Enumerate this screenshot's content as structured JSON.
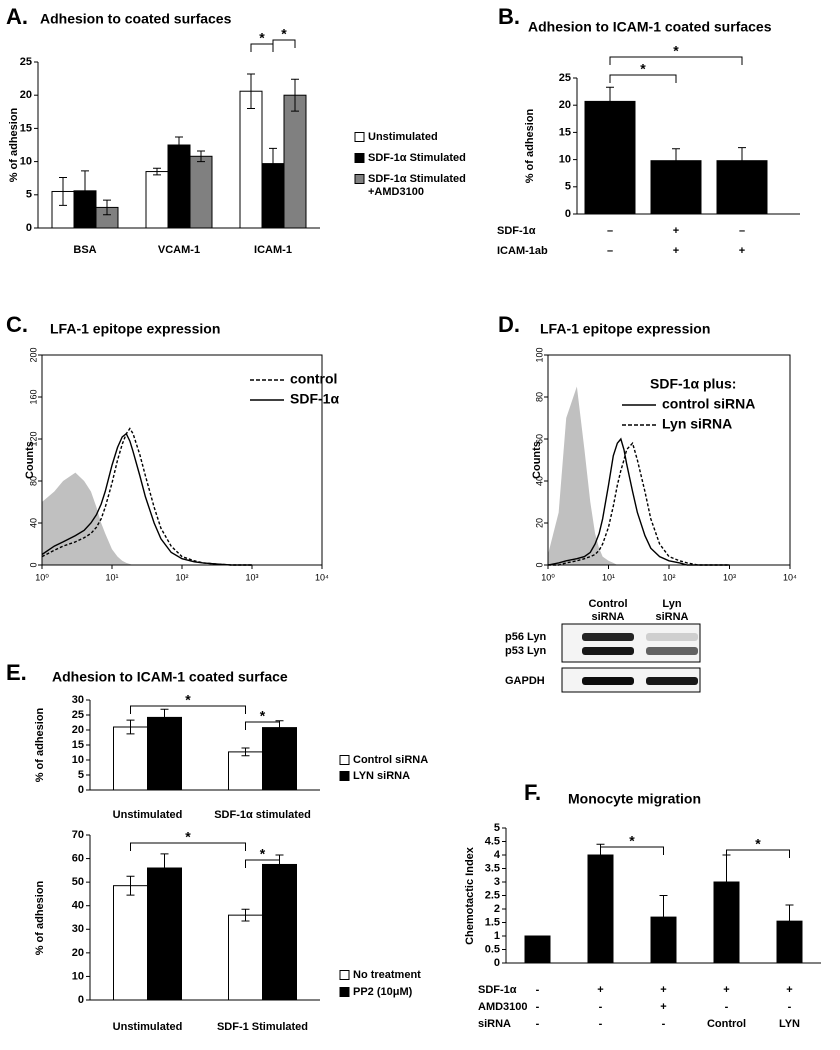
{
  "chart_data": [
    {
      "type": "bar",
      "panel": "A.",
      "title": "Adhesion to coated surfaces",
      "y_label": "% of adhesion",
      "categories": [
        "BSA",
        "VCAM-1",
        "ICAM-1"
      ],
      "series": [
        {
          "name": "Unstimulated",
          "color": "#ffffff",
          "values": [
            5.5,
            8.5,
            20.6
          ],
          "errors": [
            2.1,
            0.5,
            2.6
          ]
        },
        {
          "name": "SDF-1α Stimulated",
          "color": "#000000",
          "values": [
            5.6,
            12.5,
            9.7
          ],
          "errors": [
            3,
            1.2,
            2.3
          ]
        },
        {
          "name": "SDF-1α Stimulated +AMD3100",
          "color": "#808080",
          "values": [
            3.1,
            10.8,
            20
          ],
          "errors": [
            1.1,
            0.8,
            2.4
          ]
        }
      ],
      "ylim": [
        0,
        25
      ],
      "yticks": [
        0,
        5,
        10,
        15,
        20,
        25
      ],
      "annotations": [
        "*",
        "*"
      ]
    },
    {
      "type": "bar",
      "panel": "B.",
      "title": "Adhesion to ICAM-1 coated surfaces",
      "y_label": "% of  adhesion",
      "series": [
        {
          "color": "#000000",
          "values": [
            20.7,
            9.8,
            9.8
          ],
          "errors": [
            2.6,
            2.2,
            2.4
          ]
        }
      ],
      "rows": [
        {
          "label": "SDF-1α",
          "values": [
            "–",
            "+",
            "–"
          ]
        },
        {
          "label": "ICAM-1ab",
          "values": [
            "–",
            "+",
            "+"
          ]
        }
      ],
      "ylim": [
        0,
        25
      ],
      "yticks": [
        0,
        5,
        10,
        15,
        20,
        25
      ],
      "annotations": [
        "*",
        "*"
      ]
    },
    {
      "type": "line",
      "panel": "C.",
      "title": "LFA-1 epitope expression",
      "y_label": "Counts",
      "xlog": true,
      "x": [
        1,
        1.5,
        2,
        3,
        4,
        5,
        6,
        7,
        8,
        10,
        12,
        14,
        16,
        18,
        20,
        25,
        30,
        40,
        50,
        70,
        100,
        150,
        200,
        300,
        500,
        1000
      ],
      "series": [
        {
          "color": "#c0c0c0",
          "fill": true,
          "values": [
            60,
            70,
            80,
            88,
            80,
            70,
            55,
            40,
            30,
            15,
            8,
            4,
            2,
            1,
            0,
            0,
            0,
            0,
            0,
            0,
            0,
            0,
            0,
            0,
            0,
            0
          ]
        },
        {
          "name": "control",
          "color": "#000000",
          "dashed": true,
          "values": [
            8,
            14,
            18,
            22,
            26,
            30,
            36,
            44,
            55,
            78,
            100,
            115,
            125,
            130,
            125,
            105,
            85,
            55,
            35,
            18,
            8,
            4,
            2,
            1,
            0,
            0
          ]
        },
        {
          "name": "SDF-1α",
          "color": "#000000",
          "values": [
            10,
            18,
            22,
            28,
            33,
            40,
            48,
            58,
            70,
            95,
            112,
            122,
            125,
            118,
            108,
            85,
            65,
            40,
            25,
            12,
            6,
            3,
            2,
            1,
            0,
            0
          ]
        }
      ],
      "xlim": [
        1,
        10000
      ],
      "xticks": [
        {
          "value": 1,
          "label": "10⁰"
        },
        {
          "value": 10,
          "label": "10¹"
        },
        {
          "value": 100,
          "label": "10²"
        },
        {
          "value": 1000,
          "label": "10³"
        },
        {
          "value": 10000,
          "label": "10⁴"
        }
      ],
      "ylim": [
        0,
        200
      ],
      "yticks": [
        0,
        40,
        80,
        120,
        160,
        200
      ]
    },
    {
      "type": "line",
      "panel": "D.",
      "title": "LFA-1 epitope expression",
      "y_label": "Counts",
      "xlog": true,
      "legend_title": "SDF-1α plus:",
      "x": [
        1,
        1.5,
        2,
        3,
        4,
        5,
        6,
        7,
        8,
        10,
        12,
        14,
        16,
        18,
        20,
        25,
        30,
        40,
        50,
        70,
        100,
        150,
        200,
        300,
        500,
        1000
      ],
      "series": [
        {
          "color": "#c0c0c0",
          "fill": true,
          "values": [
            5,
            25,
            70,
            85,
            55,
            30,
            15,
            8,
            4,
            2,
            1,
            0,
            0,
            0,
            0,
            0,
            0,
            0,
            0,
            0,
            0,
            0,
            0,
            0,
            0,
            0
          ]
        },
        {
          "name": "control siRNA",
          "color": "#000000",
          "values": [
            0,
            1,
            2,
            3,
            4,
            6,
            10,
            15,
            22,
            38,
            52,
            58,
            60,
            55,
            48,
            35,
            25,
            14,
            8,
            4,
            2,
            1,
            0,
            0,
            0,
            0
          ]
        },
        {
          "name": "Lyn siRNA",
          "color": "#000000",
          "dashed": true,
          "values": [
            0,
            0,
            1,
            2,
            3,
            4,
            5,
            7,
            10,
            18,
            28,
            38,
            45,
            50,
            55,
            58,
            50,
            35,
            22,
            10,
            4,
            2,
            1,
            0,
            0,
            0
          ]
        }
      ],
      "xlim": [
        1,
        10000
      ],
      "xticks": [
        {
          "value": 1,
          "label": "10⁰"
        },
        {
          "value": 10,
          "label": "10¹"
        },
        {
          "value": 100,
          "label": "10²"
        },
        {
          "value": 1000,
          "label": "10³"
        },
        {
          "value": 10000,
          "label": "10⁴"
        }
      ],
      "ylim": [
        0,
        100
      ],
      "yticks": [
        0,
        20,
        40,
        60,
        80,
        100
      ],
      "blot": {
        "lanes": [
          "Control siRNA",
          "Lyn siRNA"
        ],
        "bands": [
          "p56 Lyn",
          "p53 Lyn",
          "GAPDH"
        ]
      }
    },
    {
      "type": "bar",
      "panel": "E.",
      "title": "Adhesion to ICAM-1 coated surface",
      "y_label": "% of adhesion",
      "categories": [
        "Unstimulated",
        "SDF-1α stimulated"
      ],
      "series": [
        {
          "name": "Control siRNA",
          "color": "#ffffff",
          "values": [
            21,
            12.7
          ],
          "errors": [
            2.3,
            1.3
          ]
        },
        {
          "name": "LYN siRNA",
          "color": "#000000",
          "values": [
            24.2,
            20.8
          ],
          "errors": [
            2.7,
            2.3
          ]
        }
      ],
      "ylim": [
        0,
        30
      ],
      "yticks": [
        0,
        5,
        10,
        15,
        20,
        25,
        30
      ],
      "annotations": [
        "*",
        "*"
      ]
    },
    {
      "type": "bar",
      "y_label": "% of adhesion",
      "categories": [
        "Unstimulated",
        "SDF-1 Stimulated"
      ],
      "series": [
        {
          "name": "No treatment",
          "color": "#ffffff",
          "values": [
            48.5,
            36
          ],
          "errors": [
            4,
            2.5
          ]
        },
        {
          "name": "PP2 (10μM)",
          "color": "#000000",
          "values": [
            56,
            57.5
          ],
          "errors": [
            6,
            4
          ]
        }
      ],
      "ylim": [
        0,
        70
      ],
      "yticks": [
        0,
        10,
        20,
        30,
        40,
        50,
        60,
        70
      ],
      "annotations": [
        "*",
        "*"
      ]
    },
    {
      "type": "bar",
      "panel": "F.",
      "title": "Monocyte migration",
      "y_label": "Chemotactic Index",
      "series": [
        {
          "color": "#000000",
          "values": [
            1,
            4,
            1.7,
            3,
            1.55
          ],
          "errors": [
            0,
            0.4,
            0.8,
            1,
            0.6
          ]
        }
      ],
      "rows": [
        {
          "label": "SDF-1α",
          "values": [
            "-",
            "+",
            "+",
            "+",
            "+"
          ]
        },
        {
          "label": "AMD3100",
          "values": [
            "-",
            "-",
            "+",
            "-",
            "-"
          ]
        },
        {
          "label": "siRNA",
          "values": [
            "-",
            "-",
            "-",
            "Control",
            "LYN"
          ]
        }
      ],
      "ylim": [
        0,
        5
      ],
      "yticks": [
        0,
        0.5,
        1,
        1.5,
        2,
        2.5,
        3,
        3.5,
        4,
        4.5,
        5
      ],
      "annotations": [
        "*",
        "*"
      ]
    }
  ]
}
